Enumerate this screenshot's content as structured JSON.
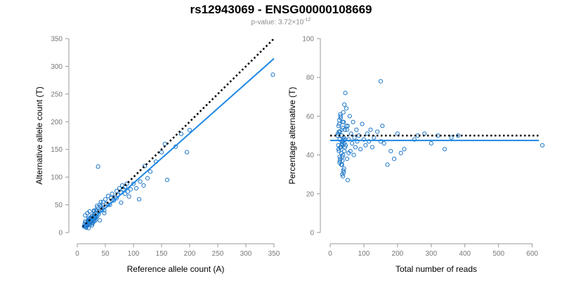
{
  "title": "rs12943069 - ENSG00000108669",
  "subtitle": {
    "prefix": "p-value: 3.72×10",
    "exponent": "-12"
  },
  "colors": {
    "points": "#1f78c8",
    "fit_line": "#1e88e5",
    "reference_line": "#000000",
    "axes": "#999999",
    "tick_labels": "#777777"
  },
  "chart_data": [
    {
      "type": "scatter",
      "xlabel": "Reference allele count (A)",
      "ylabel": "Alternative allele count (T)",
      "xlim": [
        0,
        350
      ],
      "ylim": [
        0,
        350
      ],
      "xticks": [
        0,
        50,
        100,
        150,
        200,
        250,
        300,
        350
      ],
      "yticks": [
        0,
        50,
        100,
        150,
        200,
        250,
        300,
        350
      ],
      "grid": false,
      "reference_line": {
        "style": "dotted",
        "x": [
          10,
          350
        ],
        "y": [
          10,
          350
        ]
      },
      "fit_line": {
        "style": "solid",
        "x": [
          10,
          350
        ],
        "y": [
          8,
          314
        ]
      },
      "points": {
        "x": [
          12,
          14,
          15,
          16,
          17,
          18,
          19,
          20,
          21,
          22,
          23,
          24,
          25,
          26,
          27,
          28,
          29,
          30,
          31,
          32,
          13,
          15,
          17,
          19,
          21,
          23,
          25,
          27,
          29,
          31,
          16,
          18,
          20,
          22,
          24,
          26,
          28,
          30,
          33,
          35,
          14,
          20,
          26,
          32,
          38,
          22,
          28,
          34,
          40,
          45,
          36,
          38,
          40,
          42,
          44,
          46,
          48,
          50,
          52,
          55,
          58,
          60,
          62,
          65,
          68,
          70,
          72,
          75,
          78,
          80,
          82,
          85,
          88,
          90,
          30,
          35,
          42,
          48,
          55,
          62,
          70,
          78,
          85,
          92,
          100,
          105,
          110,
          112,
          118,
          120,
          125,
          130,
          140,
          150,
          160,
          175,
          185,
          195,
          200,
          348,
          37,
          95,
          156,
          14,
          18,
          24,
          30,
          20,
          26,
          32
        ],
        "y": [
          11,
          12,
          10,
          14,
          15,
          13,
          18,
          16,
          20,
          17,
          22,
          19,
          21,
          24,
          18,
          25,
          23,
          20,
          26,
          22,
          15,
          18,
          12,
          21,
          24,
          19,
          27,
          16,
          28,
          25,
          9,
          17,
          22,
          14,
          26,
          30,
          21,
          32,
          27,
          29,
          20,
          26,
          30,
          35,
          33,
          38,
          28,
          40,
          22,
          44,
          45,
          38,
          50,
          47,
          42,
          55,
          40,
          60,
          52,
          66,
          50,
          62,
          70,
          58,
          64,
          75,
          68,
          80,
          72,
          85,
          78,
          82,
          88,
          74,
          40,
          48,
          55,
          35,
          50,
          58,
          62,
          54,
          70,
          65,
          88,
          80,
          60,
          92,
          85,
          120,
          98,
          110,
          128,
          145,
          95,
          155,
          178,
          145,
          185,
          285,
          119,
          78,
          160,
          31,
          35,
          25,
          38,
          8,
          13,
          28
        ]
      }
    },
    {
      "type": "scatter",
      "xlabel": "Total number of reads",
      "ylabel": "Percentage alternative (T)",
      "xlim": [
        0,
        630
      ],
      "ylim": [
        0,
        100
      ],
      "xticks": [
        0,
        100,
        200,
        300,
        400,
        500,
        600
      ],
      "yticks": [
        0,
        20,
        40,
        60,
        80,
        100
      ],
      "grid": false,
      "reference_line": {
        "style": "dotted",
        "x": [
          0,
          620
        ],
        "y": [
          50,
          50
        ]
      },
      "fit_line": {
        "style": "solid",
        "x": [
          0,
          620
        ],
        "y": [
          47.5,
          47.5
        ]
      },
      "points": {
        "x": [
          22,
          24,
          25,
          26,
          27,
          28,
          29,
          30,
          31,
          32,
          33,
          34,
          35,
          36,
          37,
          38,
          39,
          40,
          41,
          42,
          23,
          25,
          27,
          29,
          31,
          33,
          35,
          37,
          39,
          41,
          26,
          28,
          30,
          32,
          34,
          36,
          38,
          40,
          42,
          44,
          45,
          46,
          48,
          50,
          52,
          55,
          58,
          60,
          62,
          65,
          68,
          70,
          72,
          75,
          78,
          80,
          85,
          90,
          95,
          100,
          105,
          110,
          115,
          120,
          125,
          130,
          140,
          150,
          155,
          160,
          170,
          180,
          190,
          200,
          210,
          220,
          250,
          260,
          280,
          300,
          320,
          340,
          360,
          380,
          630,
          150,
          50,
          45,
          55,
          35,
          38,
          42,
          48,
          36,
          44,
          52,
          40,
          30,
          28,
          34
        ],
        "y": [
          50,
          45,
          55,
          42,
          58,
          48,
          52,
          38,
          60,
          44,
          35,
          53,
          47,
          30,
          57,
          40,
          62,
          49,
          33,
          46,
          51,
          43,
          56,
          37,
          59,
          41,
          46,
          54,
          32,
          48,
          52,
          36,
          61,
          44,
          50,
          39,
          47,
          57,
          42,
          53,
          72,
          45,
          64,
          38,
          55,
          48,
          60,
          42,
          51,
          46,
          57,
          40,
          49,
          44,
          53,
          47,
          50,
          43,
          56,
          48,
          45,
          51,
          47,
          53,
          44,
          49,
          52,
          78,
          55,
          46,
          35,
          42,
          38,
          51,
          41,
          43,
          48,
          50,
          51,
          46,
          50,
          43,
          49,
          50,
          45,
          47,
          53,
          48,
          41,
          35,
          29,
          66,
          55,
          37,
          44,
          27,
          31,
          44,
          39,
          45
        ]
      }
    }
  ]
}
